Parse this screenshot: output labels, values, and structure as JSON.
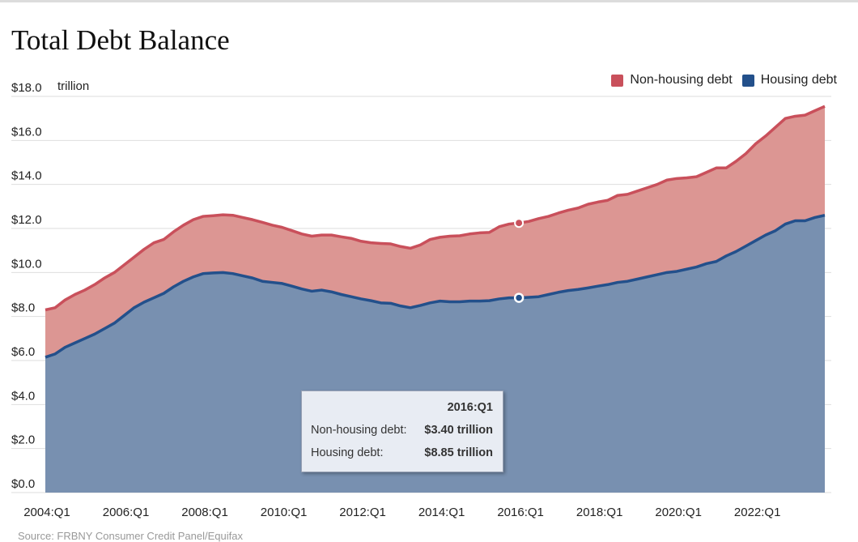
{
  "chart_data": {
    "type": "area",
    "stacked": true,
    "title": "Total Debt Balance",
    "unit_label": "trillion",
    "ylim": [
      0,
      18
    ],
    "y_ticks": [
      {
        "value": 0,
        "label": "$0.0"
      },
      {
        "value": 2,
        "label": "$2.0"
      },
      {
        "value": 4,
        "label": "$4.0"
      },
      {
        "value": 6,
        "label": "$6.0"
      },
      {
        "value": 8,
        "label": "$8.0"
      },
      {
        "value": 10,
        "label": "$10.0"
      },
      {
        "value": 12,
        "label": "$12.0"
      },
      {
        "value": 14,
        "label": "$14.0"
      },
      {
        "value": 16,
        "label": "$16.0"
      },
      {
        "value": 18,
        "label": "$18.0"
      }
    ],
    "x_ticks": [
      {
        "value": 2004,
        "label": "2004:Q1"
      },
      {
        "value": 2006,
        "label": "2006:Q1"
      },
      {
        "value": 2008,
        "label": "2008:Q1"
      },
      {
        "value": 2010,
        "label": "2010:Q1"
      },
      {
        "value": 2012,
        "label": "2012:Q1"
      },
      {
        "value": 2014,
        "label": "2014:Q1"
      },
      {
        "value": 2016,
        "label": "2016:Q1"
      },
      {
        "value": 2018,
        "label": "2018:Q1"
      },
      {
        "value": 2020,
        "label": "2020:Q1"
      },
      {
        "value": 2022,
        "label": "2022:Q1"
      }
    ],
    "x_range": [
      2004,
      2023.75
    ],
    "x": [
      2004,
      2004.25,
      2004.5,
      2004.75,
      2005,
      2005.25,
      2005.5,
      2005.75,
      2006,
      2006.25,
      2006.5,
      2006.75,
      2007,
      2007.25,
      2007.5,
      2007.75,
      2008,
      2008.25,
      2008.5,
      2008.75,
      2009,
      2009.25,
      2009.5,
      2009.75,
      2010,
      2010.25,
      2010.5,
      2010.75,
      2011,
      2011.25,
      2011.5,
      2011.75,
      2012,
      2012.25,
      2012.5,
      2012.75,
      2013,
      2013.25,
      2013.5,
      2013.75,
      2014,
      2014.25,
      2014.5,
      2014.75,
      2015,
      2015.25,
      2015.5,
      2015.75,
      2016,
      2016.25,
      2016.5,
      2016.75,
      2017,
      2017.25,
      2017.5,
      2017.75,
      2018,
      2018.25,
      2018.5,
      2018.75,
      2019,
      2019.25,
      2019.5,
      2019.75,
      2020,
      2020.25,
      2020.5,
      2020.75,
      2021,
      2021.25,
      2021.5,
      2021.75,
      2022,
      2022.25,
      2022.5,
      2022.75,
      2023,
      2023.25,
      2023.5,
      2023.75
    ],
    "series": [
      {
        "name": "Housing debt",
        "color": "#23508b",
        "fill": "#7890b0",
        "values": [
          6.15,
          6.3,
          6.6,
          6.8,
          7.0,
          7.2,
          7.45,
          7.7,
          8.05,
          8.4,
          8.65,
          8.85,
          9.05,
          9.35,
          9.6,
          9.8,
          9.95,
          9.98,
          10.0,
          9.95,
          9.85,
          9.75,
          9.6,
          9.55,
          9.5,
          9.38,
          9.25,
          9.15,
          9.2,
          9.12,
          9.0,
          8.9,
          8.8,
          8.72,
          8.62,
          8.6,
          8.48,
          8.4,
          8.5,
          8.62,
          8.7,
          8.67,
          8.67,
          8.7,
          8.7,
          8.72,
          8.8,
          8.85,
          8.85,
          8.87,
          8.9,
          9.0,
          9.1,
          9.18,
          9.23,
          9.3,
          9.38,
          9.45,
          9.55,
          9.6,
          9.7,
          9.8,
          9.9,
          10.0,
          10.05,
          10.15,
          10.25,
          10.4,
          10.5,
          10.75,
          10.95,
          11.2,
          11.45,
          11.7,
          11.9,
          12.2,
          12.35,
          12.35,
          12.5,
          12.6
        ]
      },
      {
        "name": "Non-housing debt",
        "color": "#c9505b",
        "fill": "#dc9693",
        "values": [
          2.15,
          2.1,
          2.15,
          2.2,
          2.2,
          2.25,
          2.3,
          2.3,
          2.3,
          2.3,
          2.4,
          2.5,
          2.45,
          2.5,
          2.55,
          2.6,
          2.6,
          2.6,
          2.62,
          2.65,
          2.65,
          2.65,
          2.68,
          2.6,
          2.55,
          2.52,
          2.5,
          2.5,
          2.5,
          2.58,
          2.62,
          2.65,
          2.62,
          2.63,
          2.7,
          2.7,
          2.7,
          2.7,
          2.75,
          2.88,
          2.9,
          2.98,
          3.0,
          3.05,
          3.1,
          3.1,
          3.28,
          3.35,
          3.4,
          3.45,
          3.55,
          3.55,
          3.6,
          3.65,
          3.7,
          3.8,
          3.82,
          3.83,
          3.95,
          3.95,
          4.0,
          4.05,
          4.1,
          4.2,
          4.22,
          4.15,
          4.1,
          4.15,
          4.25,
          4.0,
          4.1,
          4.2,
          4.4,
          4.5,
          4.7,
          4.8,
          4.75,
          4.8,
          4.85,
          4.95
        ]
      }
    ],
    "highlight": {
      "x": 2016,
      "label": "2016:Q1"
    }
  },
  "legend": {
    "non_housing_label": "Non-housing debt",
    "housing_label": "Housing debt"
  },
  "tooltip": {
    "title": "2016:Q1",
    "non_housing_label": "Non-housing debt:",
    "non_housing_value": "$3.40 trillion",
    "housing_label": "Housing debt:",
    "housing_value": "$8.85 trillion"
  },
  "source": "Source: FRBNY Consumer Credit Panel/Equifax",
  "colors": {
    "housing_line": "#23508b",
    "non_housing_line": "#c9505b"
  }
}
